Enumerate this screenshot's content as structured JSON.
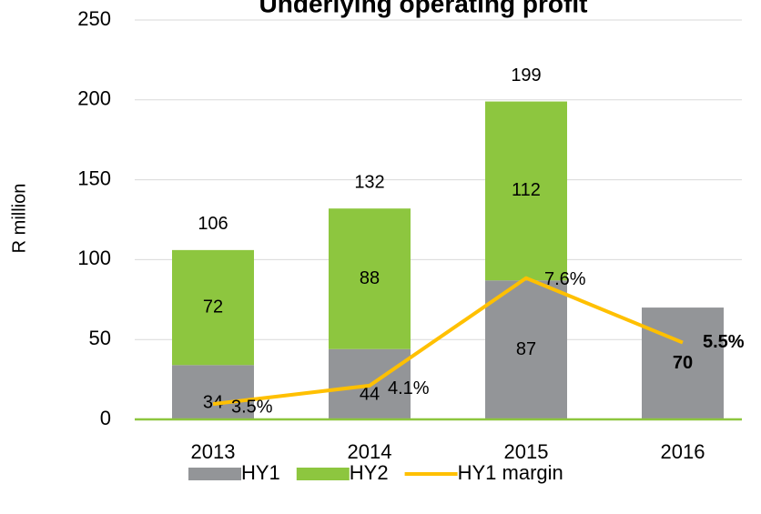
{
  "chart_data": {
    "type": "bar",
    "title": "Underlying operating profit",
    "y_label": "R million",
    "categories": [
      "2013",
      "2014",
      "2015",
      "2016"
    ],
    "ylim": [
      0,
      250
    ],
    "yticks": [
      0,
      50,
      100,
      150,
      200,
      250
    ],
    "y2lim": [
      3,
      16
    ],
    "grid": true,
    "stacked": true,
    "series": [
      {
        "name": "HY1",
        "color": "#939598",
        "values": [
          34,
          44,
          87,
          70
        ]
      },
      {
        "name": "HY2",
        "color": "#8dc63f",
        "values": [
          72,
          88,
          112,
          null
        ]
      },
      {
        "name": "HY1 margin",
        "type": "line",
        "axis": "y2",
        "color": "#ffc000",
        "values": [
          3.5,
          4.1,
          7.6,
          5.5
        ],
        "value_labels": [
          "3.5%",
          "4.1%",
          "7.6%",
          "5.5%"
        ]
      }
    ],
    "totals": [
      106,
      132,
      199,
      null
    ]
  }
}
